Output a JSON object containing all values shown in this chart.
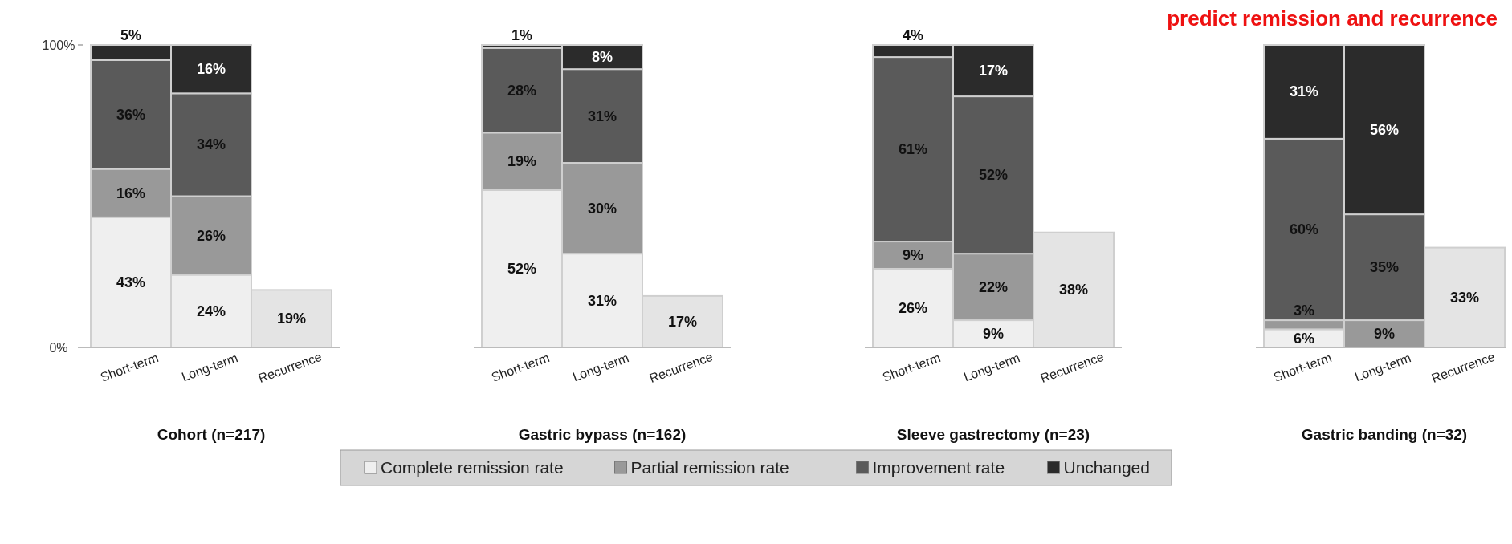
{
  "chart_data": [
    {
      "type": "bar",
      "stacked": true,
      "xlabel": "Cohort (n=217)",
      "categories": [
        "Short-term",
        "Long-term",
        "Recurrence"
      ],
      "ylim": [
        0,
        100
      ],
      "yticks": [
        {
          "value": 0,
          "label": "0%"
        },
        {
          "value": 100,
          "label": "100%"
        }
      ],
      "legend": "bottom",
      "series": [
        {
          "name": "Complete remission rate",
          "color": "#efefef",
          "values": [
            43,
            24,
            null
          ],
          "value_labels": [
            "43%",
            "24%",
            null
          ]
        },
        {
          "name": "Partial remission rate",
          "color": "#999999",
          "values": [
            16,
            26,
            null
          ],
          "value_labels": [
            "16%",
            "26%",
            null
          ]
        },
        {
          "name": "Improvement rate",
          "color": "#5a5a5a",
          "values": [
            36,
            34,
            null
          ],
          "value_labels": [
            "36%",
            "34%",
            null
          ]
        },
        {
          "name": "Unchanged",
          "color": "#2b2b2b",
          "values": [
            5,
            16,
            null
          ],
          "value_labels": [
            "5%",
            "16%",
            null
          ]
        },
        {
          "color": "#e4e4e4",
          "values": [
            null,
            null,
            19
          ],
          "value_labels": [
            null,
            null,
            "19%"
          ]
        }
      ]
    },
    {
      "type": "bar",
      "stacked": true,
      "xlabel": "Gastric bypass (n=162)",
      "categories": [
        "Short-term",
        "Long-term",
        "Recurrence"
      ],
      "ylim": [
        0,
        100
      ],
      "tick_labels": "x",
      "series": [
        {
          "color": "#efefef",
          "values": [
            52,
            31,
            null
          ],
          "value_labels": [
            "52%",
            "31%",
            null
          ]
        },
        {
          "color": "#999999",
          "values": [
            19,
            30,
            null
          ],
          "value_labels": [
            "19%",
            "30%",
            null
          ]
        },
        {
          "color": "#5a5a5a",
          "values": [
            28,
            31,
            null
          ],
          "value_labels": [
            "28%",
            "31%",
            null
          ]
        },
        {
          "color": "#2b2b2b",
          "values": [
            1,
            8,
            null
          ],
          "value_labels": [
            "1%",
            "8%",
            null
          ]
        },
        {
          "color": "#e4e4e4",
          "values": [
            null,
            null,
            17
          ],
          "value_labels": [
            null,
            null,
            "17%"
          ]
        }
      ]
    },
    {
      "type": "bar",
      "stacked": true,
      "xlabel": "Sleeve gastrectomy (n=23)",
      "categories": [
        "Short-term",
        "Long-term",
        "Recurrence"
      ],
      "ylim": [
        0,
        100
      ],
      "tick_labels": "x",
      "series": [
        {
          "color": "#efefef",
          "values": [
            26,
            9,
            null
          ],
          "value_labels": [
            "26%",
            "9%",
            null
          ]
        },
        {
          "color": "#999999",
          "values": [
            9,
            22,
            null
          ],
          "value_labels": [
            "9%",
            "22%",
            null
          ]
        },
        {
          "color": "#5a5a5a",
          "values": [
            61,
            52,
            null
          ],
          "value_labels": [
            "61%",
            "52%",
            null
          ]
        },
        {
          "color": "#2b2b2b",
          "values": [
            4,
            17,
            null
          ],
          "value_labels": [
            "4%",
            "17%",
            null
          ]
        },
        {
          "color": "#e4e4e4",
          "values": [
            null,
            null,
            38
          ],
          "value_labels": [
            null,
            null,
            "38%"
          ]
        }
      ]
    },
    {
      "type": "bar",
      "stacked": true,
      "xlabel": "Gastric banding (n=32)",
      "categories": [
        "Short-term",
        "Long-term",
        "Recurrence"
      ],
      "ylim": [
        0,
        100
      ],
      "tick_labels": "x",
      "annotations": [
        "predict remission and recurrence"
      ],
      "series": [
        {
          "color": "#efefef",
          "values": [
            6,
            null,
            null
          ],
          "value_labels": [
            "6%",
            null,
            null
          ]
        },
        {
          "color": "#999999",
          "values": [
            3,
            9,
            null
          ],
          "value_labels": [
            "3%",
            "9%",
            null
          ]
        },
        {
          "color": "#5a5a5a",
          "values": [
            60,
            35,
            null
          ],
          "value_labels": [
            "60%",
            "35%",
            null
          ]
        },
        {
          "color": "#2b2b2b",
          "values": [
            31,
            56,
            null
          ],
          "value_labels": [
            "31%",
            "56%",
            null
          ]
        },
        {
          "color": "#e4e4e4",
          "values": [
            null,
            null,
            33
          ],
          "value_labels": [
            null,
            null,
            "33%"
          ]
        }
      ]
    }
  ]
}
